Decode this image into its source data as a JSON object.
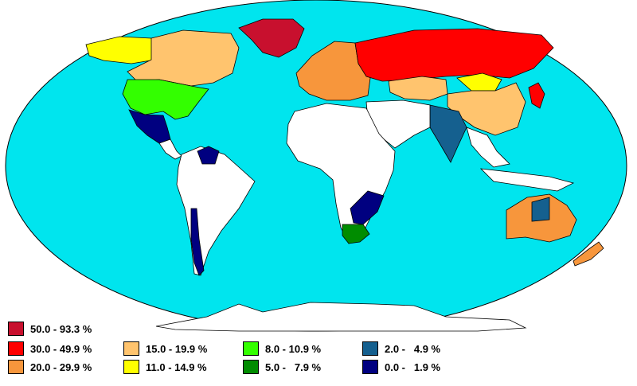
{
  "map": {
    "ocean_color": "#00E5EE",
    "land_nodata_color": "#FFFFFF",
    "border_color": "#000000"
  },
  "legend": [
    {
      "label": "50.0 - 93.3 %",
      "color": "#C8102E"
    },
    {
      "label": "30.0 - 49.9 %",
      "color": "#FF0000"
    },
    {
      "label": "20.0 - 29.9 %",
      "color": "#F7963C"
    },
    {
      "label": "15.0 - 19.9 %",
      "color": "#FFC46E"
    },
    {
      "label": "11.0 - 14.9 %",
      "color": "#FFFF00"
    },
    {
      "label": "8.0 - 10.9 %",
      "color": "#33FF00"
    },
    {
      "label": "5.0 -   7.9 %",
      "color": "#008C00"
    },
    {
      "label": "2.0 -   4.9 %",
      "color": "#15608F"
    },
    {
      "label": "0.0 -   1.9 %",
      "color": "#000080"
    }
  ],
  "regions": [
    {
      "name": "greenland",
      "category": 0
    },
    {
      "name": "canada",
      "category": 3
    },
    {
      "name": "alaska",
      "category": 4
    },
    {
      "name": "usa",
      "category": 5
    },
    {
      "name": "mexico",
      "category": 8
    },
    {
      "name": "venezuela",
      "category": 8
    },
    {
      "name": "chile",
      "category": 8
    },
    {
      "name": "europe-west",
      "category": 2
    },
    {
      "name": "russia",
      "category": 1
    },
    {
      "name": "kazakhstan",
      "category": 3
    },
    {
      "name": "china",
      "category": 3
    },
    {
      "name": "mongolia",
      "category": 4
    },
    {
      "name": "india",
      "category": 7
    },
    {
      "name": "japan",
      "category": 1
    },
    {
      "name": "australia",
      "category": 2
    },
    {
      "name": "australia-interior",
      "category": 7
    },
    {
      "name": "south-africa",
      "category": 6
    },
    {
      "name": "mozambique",
      "category": 8
    },
    {
      "name": "new-zealand",
      "category": 2
    }
  ]
}
